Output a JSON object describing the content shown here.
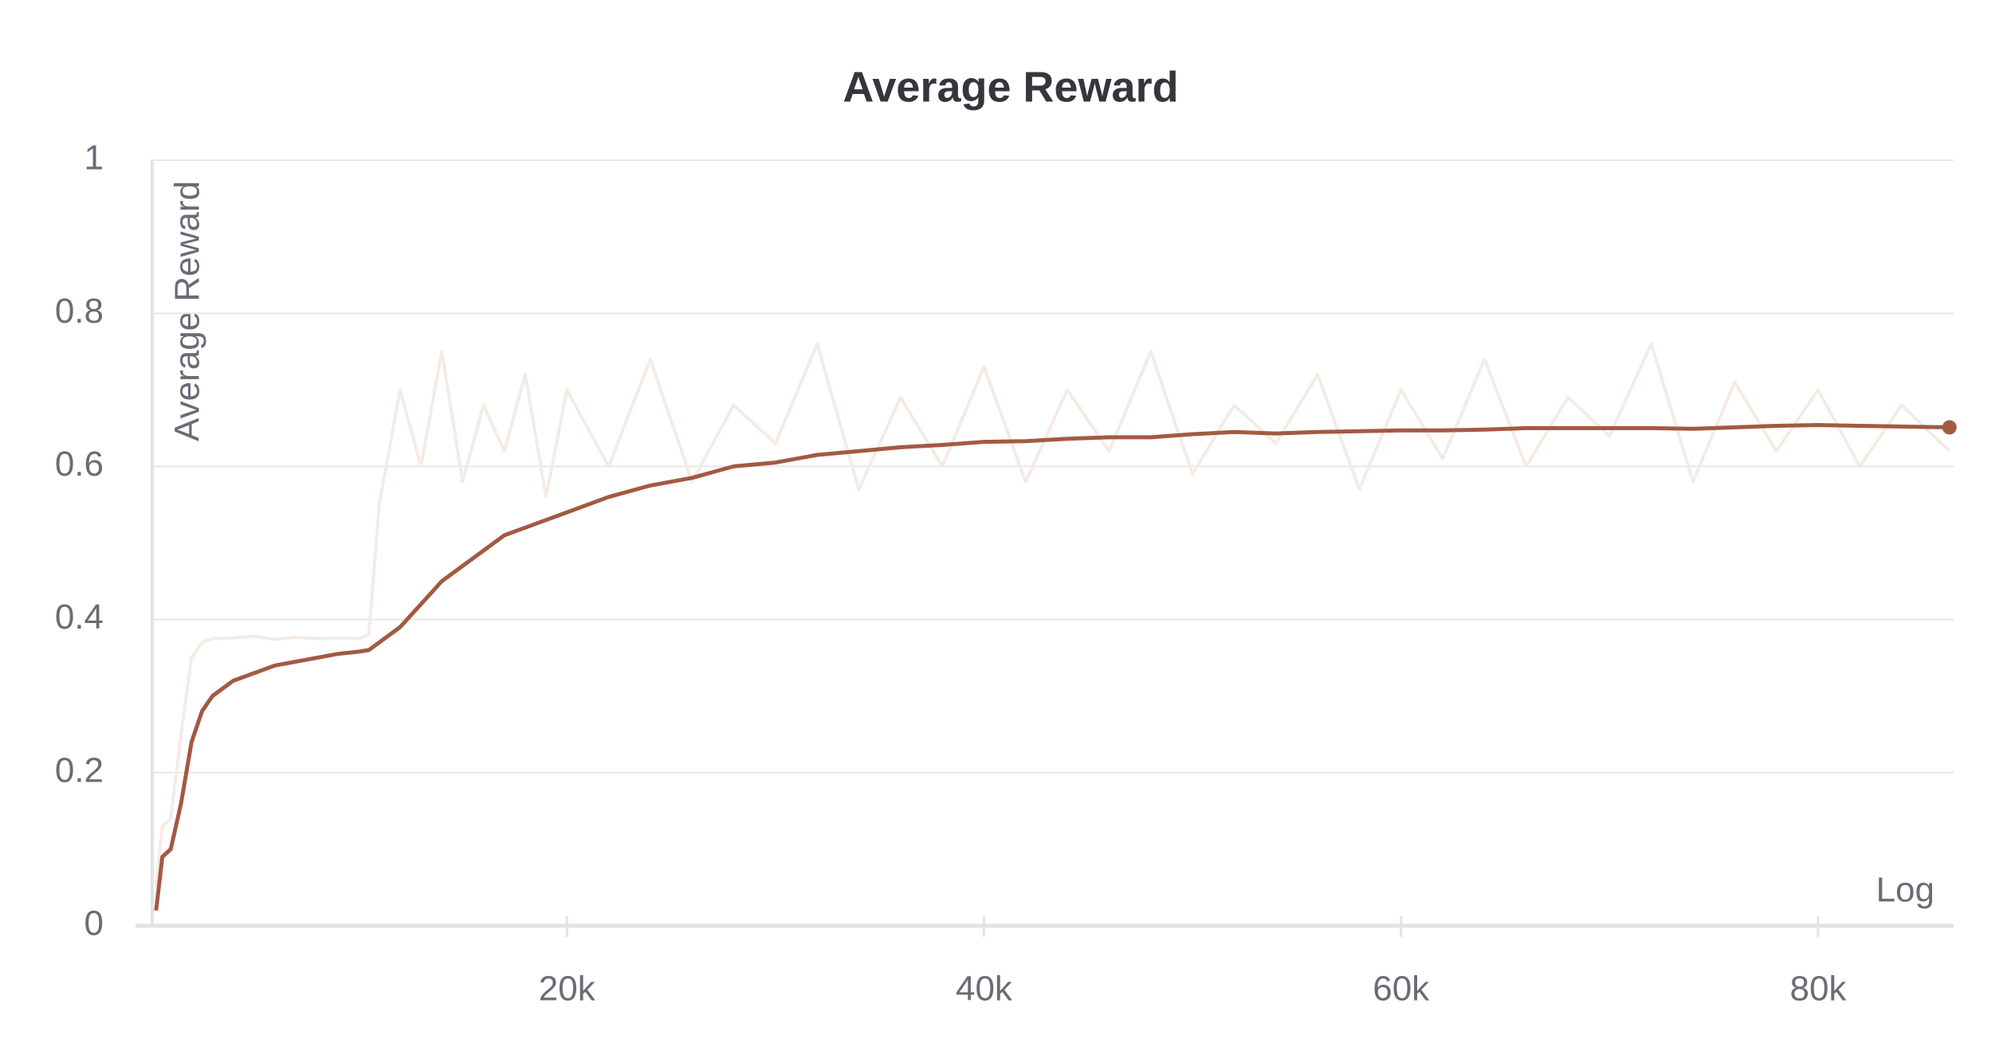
{
  "chart_data": {
    "type": "line",
    "title": "Average Reward",
    "y_label": "Average Reward",
    "x_label": "Log",
    "x": [
      300,
      600,
      1000,
      1500,
      2000,
      2500,
      3000,
      4000,
      5000,
      6000,
      7000,
      8000,
      9000,
      10000,
      10500,
      11000,
      12000,
      13000,
      14000,
      15000,
      16000,
      17000,
      18000,
      19000,
      20000,
      22000,
      24000,
      26000,
      28000,
      30000,
      32000,
      34000,
      36000,
      38000,
      40000,
      42000,
      44000,
      46000,
      48000,
      50000,
      52000,
      54000,
      56000,
      58000,
      60000,
      62000,
      64000,
      66000,
      68000,
      70000,
      72000,
      74000,
      76000,
      78000,
      80000,
      82000,
      84000,
      86300
    ],
    "series": [
      {
        "color": "#f5ebe5",
        "values": [
          0.05,
          0.13,
          0.14,
          0.25,
          0.35,
          0.37,
          0.375,
          0.376,
          0.378,
          0.374,
          0.377,
          0.375,
          0.376,
          0.375,
          0.38,
          0.55,
          0.7,
          0.6,
          0.75,
          0.58,
          0.68,
          0.62,
          0.72,
          0.56,
          0.7,
          0.6,
          0.74,
          0.58,
          0.68,
          0.63,
          0.76,
          0.57,
          0.69,
          0.6,
          0.73,
          0.58,
          0.7,
          0.62,
          0.75,
          0.59,
          0.68,
          0.63,
          0.72,
          0.57,
          0.7,
          0.61,
          0.74,
          0.6,
          0.69,
          0.64,
          0.76,
          0.58,
          0.71,
          0.62,
          0.7,
          0.6,
          0.68,
          0.62
        ]
      },
      {
        "color": "#a25a42",
        "values": [
          0.02,
          0.09,
          0.1,
          0.16,
          0.24,
          0.28,
          0.3,
          0.32,
          0.33,
          0.34,
          0.345,
          0.35,
          0.355,
          0.358,
          0.36,
          0.37,
          0.39,
          0.42,
          0.45,
          0.47,
          0.49,
          0.51,
          0.52,
          0.53,
          0.54,
          0.56,
          0.575,
          0.585,
          0.6,
          0.605,
          0.615,
          0.62,
          0.625,
          0.628,
          0.632,
          0.633,
          0.636,
          0.638,
          0.638,
          0.642,
          0.645,
          0.643,
          0.645,
          0.646,
          0.647,
          0.647,
          0.648,
          0.65,
          0.65,
          0.65,
          0.65,
          0.649,
          0.651,
          0.653,
          0.654,
          0.653,
          0.652,
          0.651
        ]
      }
    ],
    "xlim": [
      0,
      86500
    ],
    "ylim": [
      0,
      1
    ],
    "xticks": [
      {
        "value": 20000,
        "label": "20k"
      },
      {
        "value": 40000,
        "label": "40k"
      },
      {
        "value": 60000,
        "label": "60k"
      },
      {
        "value": 80000,
        "label": "80k"
      }
    ],
    "yticks": [
      0,
      0.2,
      0.4,
      0.6,
      0.8,
      1
    ],
    "grid": true
  }
}
